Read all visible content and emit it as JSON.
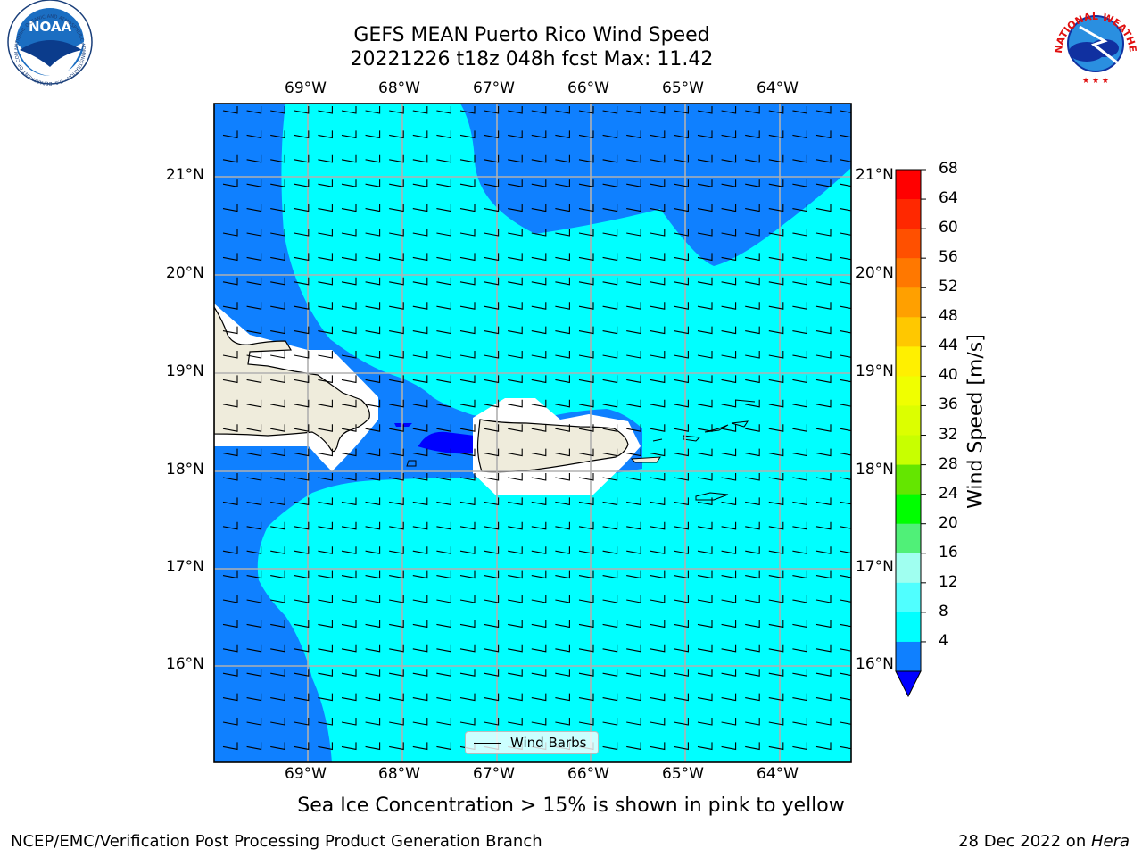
{
  "header": {
    "title_line1": "GEFS MEAN Puerto Rico Wind Speed",
    "title_line2": "20221226 t18z 048h fcst   Max: 11.42"
  },
  "logos": {
    "left": "NOAA",
    "left_ring_text": "NATIONAL OCEANIC AND ATMOSPHERIC ADMINISTRATION · U.S. DEPARTMENT OF COMMERCE",
    "right_ring_text": "NATIONAL WEATHER SERVICE"
  },
  "map": {
    "lon_labels": [
      "69°W",
      "68°W",
      "67°W",
      "66°W",
      "65°W",
      "64°W"
    ],
    "lat_labels": [
      "21°N",
      "20°N",
      "19°N",
      "18°N",
      "17°N",
      "16°N"
    ],
    "legend_label": "Wind Barbs",
    "colors": {
      "band_4_8": "#0f80ff",
      "band_8_12": "#00ffff",
      "land": "#efecdc",
      "under": "#0000ff"
    }
  },
  "colorbar": {
    "label": "Wind Speed [m/s]",
    "ticks": [
      "68",
      "64",
      "60",
      "56",
      "52",
      "48",
      "44",
      "40",
      "36",
      "32",
      "28",
      "24",
      "20",
      "16",
      "12",
      "8",
      "4"
    ],
    "colors": [
      "#ff0000",
      "#ff2800",
      "#ff5000",
      "#ff7800",
      "#ffa000",
      "#ffc800",
      "#fff000",
      "#f0ff00",
      "#dcff00",
      "#c8ff00",
      "#64e600",
      "#00ff00",
      "#50f078",
      "#a0fff0",
      "#50ffff",
      "#00ffff",
      "#0f80ff"
    ]
  },
  "caption": "Sea Ice Concentration > 15% is shown in pink to yellow",
  "footer": {
    "left": "NCEP/EMC/Verification Post Processing Product Generation Branch",
    "date": "28 Dec 2022 on ",
    "machine": "Hera"
  }
}
